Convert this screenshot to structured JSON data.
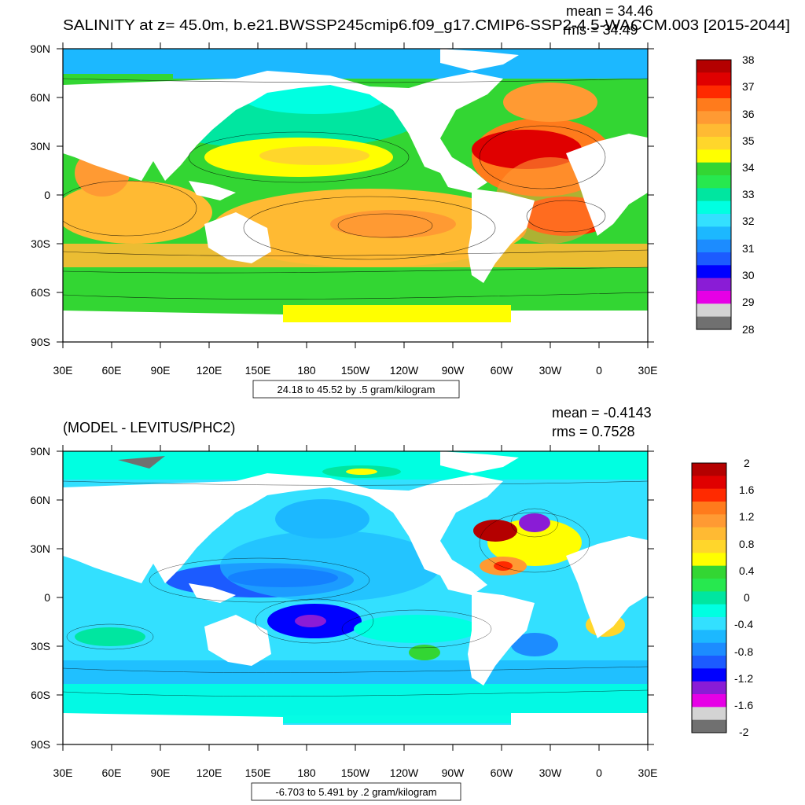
{
  "panels": [
    {
      "title": "SALINITY at z=  45.0m, b.e21.BWSSP245cmip6.f09_g17.CMIP6-SSP2-4.5-WACCM.003 [2015-2044]",
      "mean_text": "mean = 34.46",
      "rms_text": "rms = 34.49",
      "contour_info": "24.18 to 45.52 by .5 gram/kilogram",
      "colorbar_labels": [
        "38",
        "37",
        "36",
        "35",
        "34",
        "33",
        "32",
        "31",
        "30",
        "29",
        "28"
      ],
      "colorbar_colors": [
        "#b40000",
        "#e00000",
        "#ff2a00",
        "#ff7b1c",
        "#ff9a33",
        "#ffba33",
        "#ffd62b",
        "#ffff00",
        "#33d633",
        "#27e84f",
        "#00e6a0",
        "#00ffe1",
        "#33e0ff",
        "#1cb8ff",
        "#1c8cff",
        "#1c5bff",
        "#0000ff",
        "#8a1cd6",
        "#e600e6",
        "#d3d3d3",
        "#707070"
      ]
    },
    {
      "title": "(MODEL - LEVITUS/PHC2)",
      "mean_text": "mean = -0.4143",
      "rms_text": "rms = 0.7528",
      "contour_info": "-6.703 to 5.491 by .2 gram/kilogram",
      "colorbar_labels": [
        "2",
        "1.6",
        "1.2",
        "0.8",
        "0.4",
        "0",
        "-0.4",
        "-0.8",
        "-1.2",
        "-1.6",
        "-2"
      ],
      "colorbar_colors": [
        "#b40000",
        "#e00000",
        "#ff2a00",
        "#ff7b1c",
        "#ff9a33",
        "#ffba33",
        "#ffd62b",
        "#ffff00",
        "#33d633",
        "#27e84f",
        "#00e6a0",
        "#00ffe1",
        "#33e0ff",
        "#1cb8ff",
        "#1c8cff",
        "#1c5bff",
        "#0000ff",
        "#8a1cd6",
        "#e600e6",
        "#d3d3d3",
        "#707070"
      ]
    }
  ],
  "lat_labels": [
    "90N",
    "60N",
    "30N",
    "0",
    "30S",
    "60S",
    "90S"
  ],
  "lon_labels": [
    "30E",
    "60E",
    "90E",
    "120E",
    "150E",
    "180",
    "150W",
    "120W",
    "90W",
    "60W",
    "30W",
    "0",
    "30E"
  ]
}
